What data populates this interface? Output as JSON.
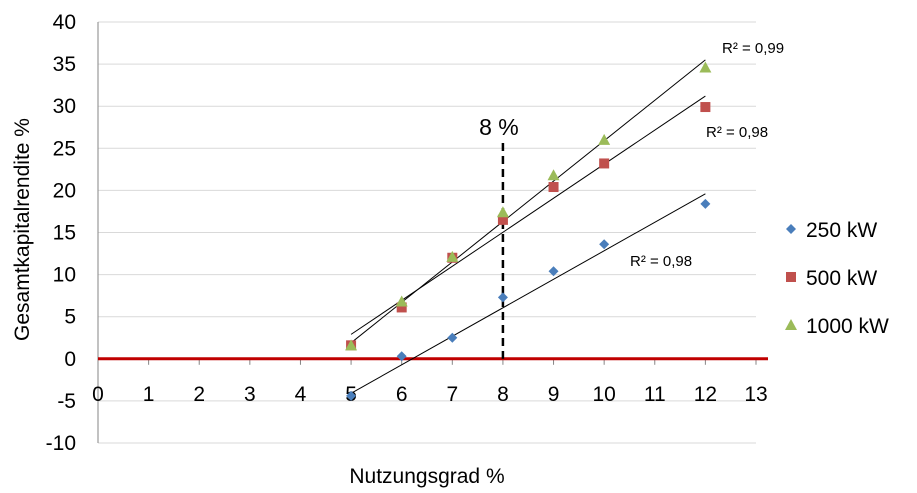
{
  "chart_data": {
    "type": "scatter",
    "title": "",
    "xlabel": "Nutzungsgrad %",
    "ylabel": "Gesamtkapitalrendite %",
    "xlim": [
      0,
      13
    ],
    "ylim": [
      -10,
      40
    ],
    "xticks": [
      0,
      1,
      2,
      3,
      4,
      5,
      6,
      7,
      8,
      9,
      10,
      11,
      12,
      13
    ],
    "yticks": [
      -10,
      -5,
      0,
      5,
      10,
      15,
      20,
      25,
      30,
      35,
      40
    ],
    "grid": true,
    "legend_position": "right",
    "series": [
      {
        "name": "250 kW",
        "marker": "diamond",
        "color": "#4a7ebb",
        "x": [
          5,
          6,
          7,
          8,
          9,
          10,
          12
        ],
        "y": [
          -4.4,
          0.3,
          2.5,
          7.3,
          10.4,
          13.6,
          18.4
        ],
        "trendline": {
          "x": [
            5,
            12
          ],
          "y": [
            -4.1,
            19.6
          ],
          "r2_label": "R² = 0,98"
        }
      },
      {
        "name": "500 kW",
        "marker": "square",
        "color": "#c0504d",
        "x": [
          5,
          6,
          7,
          8,
          9,
          10,
          12
        ],
        "y": [
          1.6,
          6.1,
          12.0,
          16.5,
          20.4,
          23.2,
          29.9
        ],
        "trendline": {
          "x": [
            5,
            12
          ],
          "y": [
            2.9,
            31.2
          ],
          "r2_label": "R² = 0,98"
        }
      },
      {
        "name": "1000 kW",
        "marker": "triangle",
        "color": "#9bbb59",
        "x": [
          5,
          6,
          7,
          8,
          9,
          10,
          12
        ],
        "y": [
          1.6,
          6.8,
          12.1,
          17.4,
          21.8,
          26.0,
          34.6
        ],
        "trendline": {
          "x": [
            5,
            12
          ],
          "y": [
            1.9,
            35.5
          ],
          "r2_label": "R² = 0,99"
        }
      }
    ],
    "reference_lines": [
      {
        "orientation": "horizontal",
        "y": 0,
        "color": "#c00000",
        "style": "solid"
      },
      {
        "orientation": "vertical",
        "x": 8,
        "label": "8 %",
        "color": "#000000",
        "style": "dashed"
      }
    ]
  }
}
